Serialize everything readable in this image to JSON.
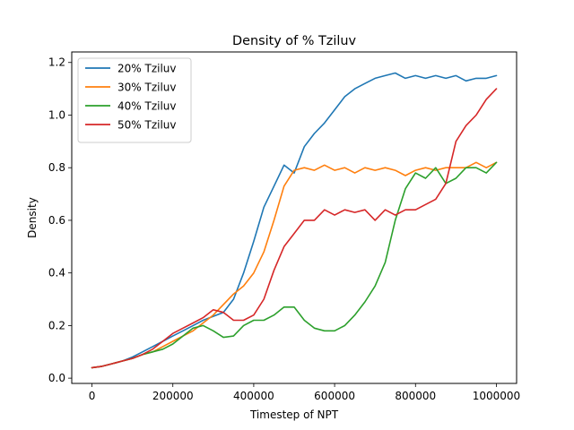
{
  "chart_data": {
    "type": "line",
    "title": "Density of % Tziluv",
    "xlabel": "Timestep of NPT",
    "ylabel": "Density",
    "xlim": [
      -50000,
      1050000
    ],
    "ylim": [
      -0.02,
      1.24
    ],
    "xticks": [
      0,
      200000,
      400000,
      600000,
      800000,
      1000000
    ],
    "xtick_labels": [
      "0",
      "200000",
      "400000",
      "600000",
      "800000",
      "1000000"
    ],
    "yticks": [
      0.0,
      0.2,
      0.4,
      0.6,
      0.8,
      1.0,
      1.2
    ],
    "ytick_labels": [
      "0.0",
      "0.2",
      "0.4",
      "0.6",
      "0.8",
      "1.0",
      "1.2"
    ],
    "grid": false,
    "legend_position": "top-left",
    "series": [
      {
        "name": "20% Tziluv",
        "color": "#1f77b4",
        "x": [
          0,
          25000,
          50000,
          75000,
          100000,
          125000,
          150000,
          175000,
          200000,
          225000,
          250000,
          275000,
          300000,
          325000,
          350000,
          375000,
          400000,
          425000,
          450000,
          475000,
          500000,
          525000,
          550000,
          575000,
          600000,
          625000,
          650000,
          675000,
          700000,
          725000,
          750000,
          775000,
          800000,
          825000,
          850000,
          875000,
          900000,
          925000,
          950000,
          975000,
          1000000
        ],
        "y": [
          0.04,
          0.045,
          0.055,
          0.065,
          0.08,
          0.1,
          0.12,
          0.14,
          0.16,
          0.18,
          0.2,
          0.22,
          0.235,
          0.25,
          0.3,
          0.4,
          0.52,
          0.65,
          0.73,
          0.81,
          0.78,
          0.88,
          0.93,
          0.97,
          1.02,
          1.07,
          1.1,
          1.12,
          1.14,
          1.15,
          1.16,
          1.14,
          1.15,
          1.14,
          1.15,
          1.14,
          1.15,
          1.13,
          1.14,
          1.14,
          1.15
        ]
      },
      {
        "name": "30% Tziluv",
        "color": "#ff7f0e",
        "x": [
          0,
          25000,
          50000,
          75000,
          100000,
          125000,
          150000,
          175000,
          200000,
          225000,
          250000,
          275000,
          300000,
          325000,
          350000,
          375000,
          400000,
          425000,
          450000,
          475000,
          500000,
          525000,
          550000,
          575000,
          600000,
          625000,
          650000,
          675000,
          700000,
          725000,
          750000,
          775000,
          800000,
          825000,
          850000,
          875000,
          900000,
          925000,
          950000,
          975000,
          1000000
        ],
        "y": [
          0.04,
          0.045,
          0.055,
          0.065,
          0.075,
          0.09,
          0.1,
          0.12,
          0.14,
          0.16,
          0.18,
          0.21,
          0.24,
          0.28,
          0.32,
          0.35,
          0.4,
          0.48,
          0.6,
          0.73,
          0.79,
          0.8,
          0.79,
          0.81,
          0.79,
          0.8,
          0.78,
          0.8,
          0.79,
          0.8,
          0.79,
          0.77,
          0.79,
          0.8,
          0.79,
          0.8,
          0.8,
          0.8,
          0.82,
          0.8,
          0.82
        ]
      },
      {
        "name": "40% Tziluv",
        "color": "#2ca02c",
        "x": [
          0,
          25000,
          50000,
          75000,
          100000,
          125000,
          150000,
          175000,
          200000,
          225000,
          250000,
          275000,
          300000,
          325000,
          350000,
          375000,
          400000,
          425000,
          450000,
          475000,
          500000,
          525000,
          550000,
          575000,
          600000,
          625000,
          650000,
          675000,
          700000,
          725000,
          750000,
          775000,
          800000,
          825000,
          850000,
          875000,
          900000,
          925000,
          950000,
          975000,
          1000000
        ],
        "y": [
          0.04,
          0.045,
          0.055,
          0.065,
          0.075,
          0.09,
          0.1,
          0.11,
          0.13,
          0.16,
          0.19,
          0.2,
          0.18,
          0.155,
          0.16,
          0.2,
          0.22,
          0.22,
          0.24,
          0.27,
          0.27,
          0.22,
          0.19,
          0.18,
          0.18,
          0.2,
          0.24,
          0.29,
          0.35,
          0.44,
          0.6,
          0.72,
          0.78,
          0.76,
          0.8,
          0.74,
          0.76,
          0.8,
          0.8,
          0.78,
          0.82
        ]
      },
      {
        "name": "50% Tziluv",
        "color": "#d62728",
        "x": [
          0,
          25000,
          50000,
          75000,
          100000,
          125000,
          150000,
          175000,
          200000,
          225000,
          250000,
          275000,
          300000,
          325000,
          350000,
          375000,
          400000,
          425000,
          450000,
          475000,
          500000,
          525000,
          550000,
          575000,
          600000,
          625000,
          650000,
          675000,
          700000,
          725000,
          750000,
          775000,
          800000,
          825000,
          850000,
          875000,
          900000,
          925000,
          950000,
          975000,
          1000000
        ],
        "y": [
          0.04,
          0.045,
          0.055,
          0.065,
          0.075,
          0.09,
          0.11,
          0.14,
          0.17,
          0.19,
          0.21,
          0.23,
          0.26,
          0.25,
          0.22,
          0.22,
          0.24,
          0.3,
          0.41,
          0.5,
          0.55,
          0.6,
          0.6,
          0.64,
          0.62,
          0.64,
          0.63,
          0.64,
          0.6,
          0.64,
          0.62,
          0.64,
          0.64,
          0.66,
          0.68,
          0.74,
          0.9,
          0.96,
          1.0,
          1.06,
          1.1
        ]
      }
    ]
  }
}
